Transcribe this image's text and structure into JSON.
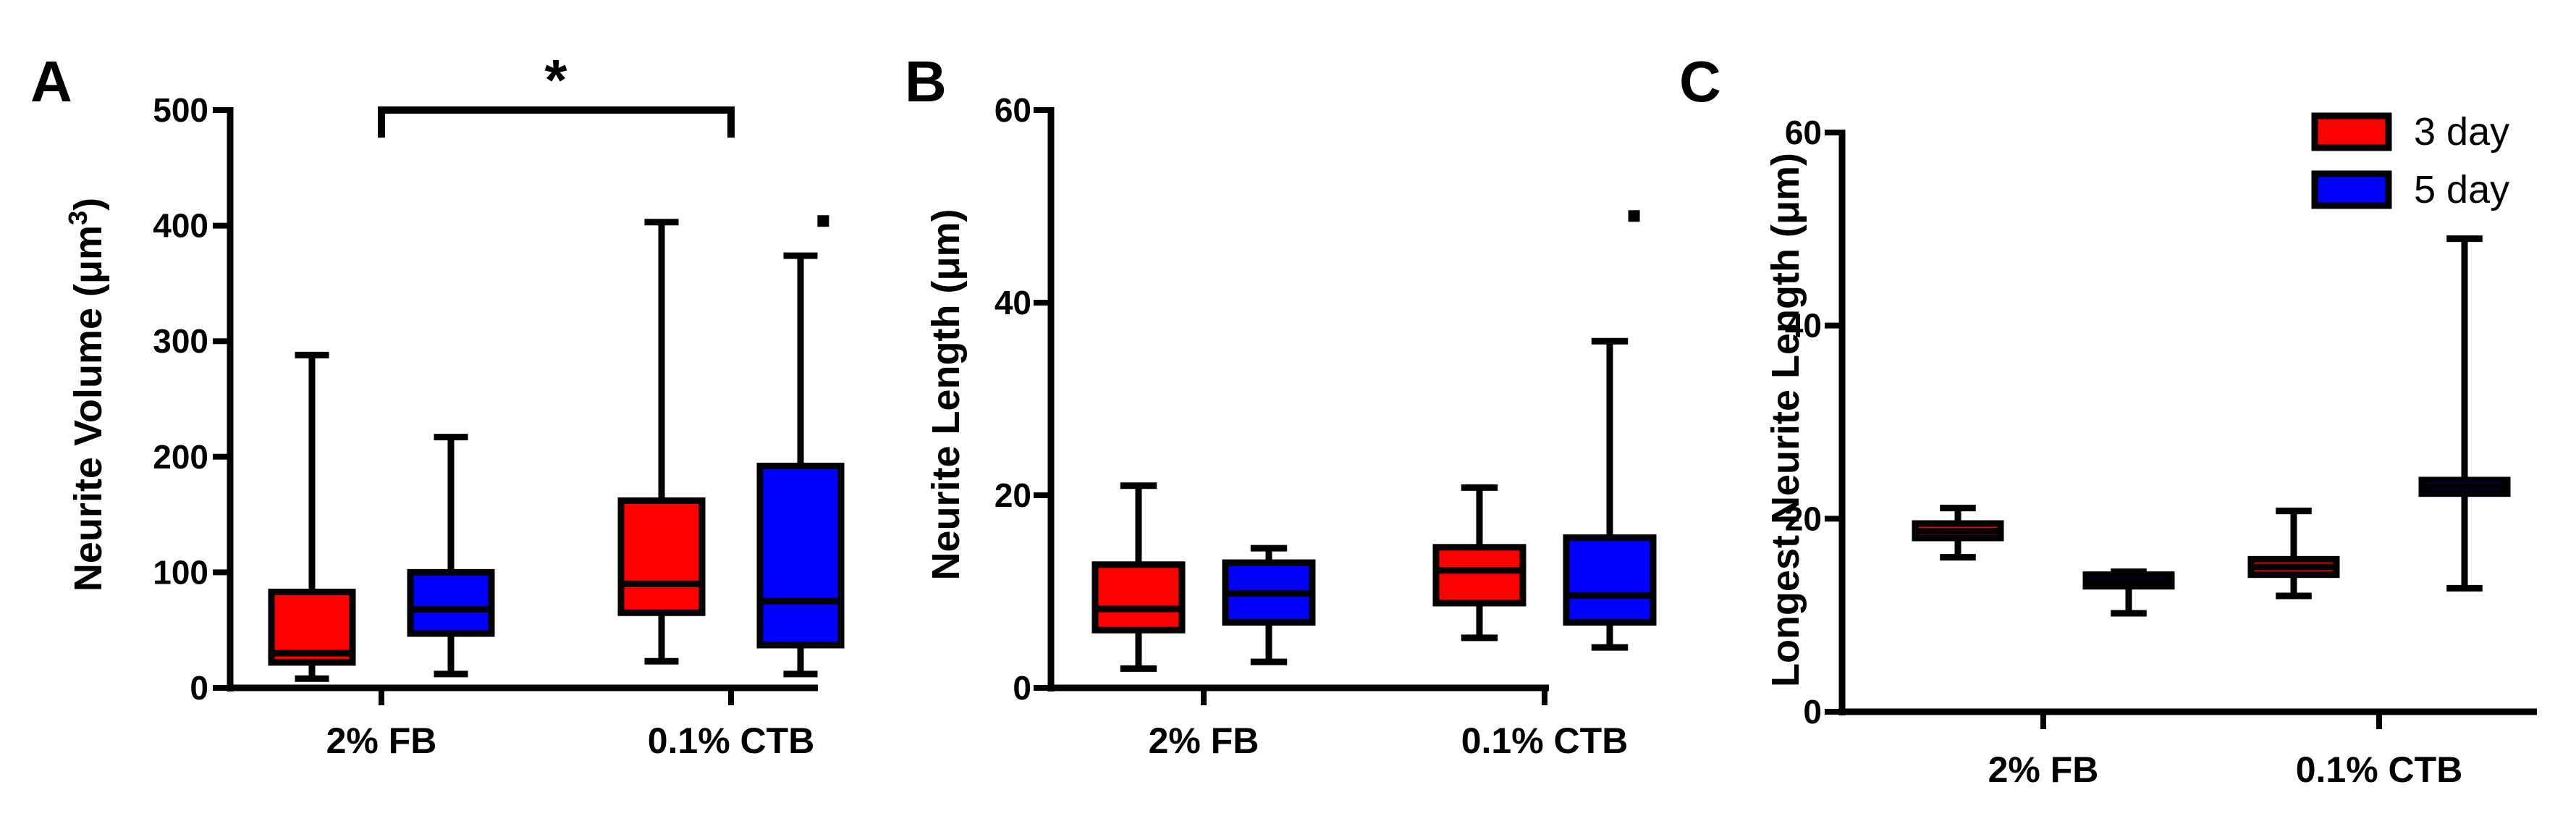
{
  "chart_data": [
    {
      "panel": "A",
      "type": "box",
      "ylabel": "Neurite Volume (μm³)",
      "ylabel_main": "Neurite Volume (",
      "ylabel_unit": "μm",
      "ylabel_exp": "3",
      "ylabel_close": ")",
      "ylim": [
        0,
        500
      ],
      "yticks": [
        0,
        100,
        200,
        300,
        400,
        500
      ],
      "categories": [
        "2% FB",
        "0.1% CTB"
      ],
      "significance": {
        "label": "*",
        "between": [
          "2% FB",
          "0.1% CTB"
        ]
      },
      "boxes": [
        {
          "group": "2% FB",
          "series": "3 day",
          "min": 8,
          "q1": 22,
          "median": 30,
          "q3": 83,
          "max": 288,
          "outliers": []
        },
        {
          "group": "2% FB",
          "series": "5 day",
          "min": 12,
          "q1": 47,
          "median": 68,
          "q3": 100,
          "max": 217,
          "outliers": []
        },
        {
          "group": "0.1% CTB",
          "series": "3 day",
          "min": 23,
          "q1": 65,
          "median": 90,
          "q3": 162,
          "max": 403,
          "outliers": []
        },
        {
          "group": "0.1% CTB",
          "series": "5 day",
          "min": 12,
          "q1": 37,
          "median": 75,
          "q3": 192,
          "max": 374,
          "outliers": [
            404
          ]
        }
      ]
    },
    {
      "panel": "B",
      "type": "box",
      "ylabel": "Neurite Length (μm)",
      "ylabel_main": "Neurite Length (",
      "ylabel_unit": "μm",
      "ylabel_close": ")",
      "ylim": [
        0,
        60
      ],
      "yticks": [
        0,
        20,
        40,
        60
      ],
      "categories": [
        "2% FB",
        "0.1% CTB"
      ],
      "boxes": [
        {
          "group": "2% FB",
          "series": "3 day",
          "min": 2,
          "q1": 6,
          "median": 8.2,
          "q3": 12.8,
          "max": 21,
          "outliers": []
        },
        {
          "group": "2% FB",
          "series": "5 day",
          "min": 2.7,
          "q1": 6.8,
          "median": 9.8,
          "q3": 13,
          "max": 14.5,
          "outliers": []
        },
        {
          "group": "0.1% CTB",
          "series": "3 day",
          "min": 5.2,
          "q1": 8.8,
          "median": 12.2,
          "q3": 14.6,
          "max": 20.8,
          "outliers": []
        },
        {
          "group": "0.1% CTB",
          "series": "5 day",
          "min": 4.2,
          "q1": 6.8,
          "median": 9.6,
          "q3": 15.6,
          "max": 36,
          "outliers": [
            49
          ]
        }
      ]
    },
    {
      "panel": "C",
      "type": "box",
      "ylabel": "Longest Neurite Length (μm)",
      "ylabel_main": "Longest Neurite Length (",
      "ylabel_unit": "μm",
      "ylabel_close": ")",
      "ylim": [
        0,
        60
      ],
      "yticks": [
        0,
        20,
        40,
        60
      ],
      "categories": [
        "2% FB",
        "0.1% CTB"
      ],
      "legend": {
        "position": "top-right",
        "entries": [
          {
            "label": "3 day",
            "color": "#ff0000"
          },
          {
            "label": "5 day",
            "color": "#0000ff"
          }
        ]
      },
      "boxes": [
        {
          "group": "2% FB",
          "series": "3 day",
          "min": 16,
          "q1": 18,
          "median": 18.7,
          "q3": 19.5,
          "max": 21.1,
          "outliers": []
        },
        {
          "group": "2% FB",
          "series": "5 day",
          "min": 10.2,
          "q1": 13,
          "median": 13.5,
          "q3": 14.2,
          "max": 14.5,
          "outliers": []
        },
        {
          "group": "0.1% CTB",
          "series": "3 day",
          "min": 12,
          "q1": 14.2,
          "median": 15,
          "q3": 15.8,
          "max": 20.8,
          "outliers": []
        },
        {
          "group": "0.1% CTB",
          "series": "5 day",
          "min": 12.8,
          "q1": 22.6,
          "median": 23.3,
          "q3": 24,
          "max": 49,
          "outliers": []
        }
      ]
    }
  ],
  "colors": {
    "3 day": "#ff0000",
    "5 day": "#0000ff",
    "axis": "#000000"
  }
}
